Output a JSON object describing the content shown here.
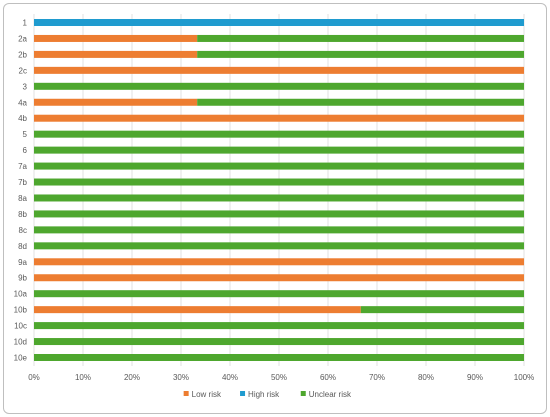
{
  "chart_data": {
    "type": "bar",
    "orientation": "horizontal",
    "stacked": "percent",
    "categories": [
      "1",
      "2a",
      "2b",
      "2c",
      "3",
      "4a",
      "4b",
      "5",
      "6",
      "7a",
      "7b",
      "8a",
      "8b",
      "8c",
      "8d",
      "9a",
      "9b",
      "10a",
      "10b",
      "10c",
      "10d",
      "10e"
    ],
    "series": [
      {
        "name": "Low risk",
        "color": "#ED7D31",
        "values": [
          0,
          33.3,
          33.3,
          100,
          0,
          33.3,
          100,
          0,
          0,
          0,
          0,
          0,
          0,
          0,
          0,
          100,
          100,
          0,
          66.7,
          0,
          0,
          0
        ]
      },
      {
        "name": "High risk",
        "color": "#1F9BCF",
        "values": [
          100,
          0,
          0,
          0,
          0,
          0,
          0,
          0,
          0,
          0,
          0,
          0,
          0,
          0,
          0,
          0,
          0,
          0,
          0,
          0,
          0,
          0
        ]
      },
      {
        "name": "Unclear risk",
        "color": "#4EA72E",
        "values": [
          0,
          66.7,
          66.7,
          0,
          100,
          66.7,
          0,
          100,
          100,
          100,
          100,
          100,
          100,
          100,
          100,
          0,
          0,
          100,
          33.3,
          100,
          100,
          100
        ]
      }
    ],
    "xlim": [
      0,
      100
    ],
    "xticks": [
      "0%",
      "10%",
      "20%",
      "30%",
      "40%",
      "50%",
      "60%",
      "70%",
      "80%",
      "90%",
      "100%"
    ],
    "grid": true,
    "legend": "bottom"
  }
}
